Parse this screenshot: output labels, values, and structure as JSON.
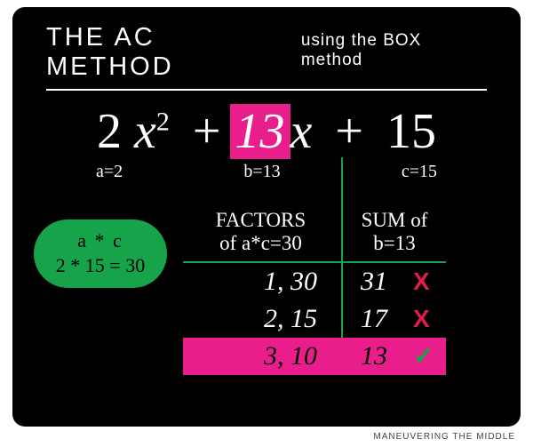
{
  "colors": {
    "frame_bg": "#000000",
    "page_bg": "#ffffff",
    "accent_green": "#16a34a",
    "accent_pink": "#e91e8c",
    "mark_red": "#e11d48",
    "text": "#ffffff"
  },
  "title": {
    "main": "THE AC METHOD",
    "sub": "using the BOX method"
  },
  "expression": {
    "a_term": "2",
    "a_var": "x",
    "a_exp": "2",
    "op1": "+",
    "b_coeff": "13",
    "b_var": "x",
    "op2": "+",
    "c_term": "15"
  },
  "coeffs": {
    "a": "a=2",
    "b": "b=13",
    "c": "c=15"
  },
  "pill": {
    "line1": "a * c",
    "line2": "2 * 15 = 30"
  },
  "table": {
    "head_factors_l1": "FACTORS",
    "head_factors_l2": "of a*c=30",
    "head_sum_l1": "SUM of",
    "head_sum_l2": "b=13",
    "rows": [
      {
        "factors": "1, 30",
        "sum": "31",
        "mark": "X",
        "ok": false
      },
      {
        "factors": "2, 15",
        "sum": "17",
        "mark": "X",
        "ok": false
      },
      {
        "factors": "3, 10",
        "sum": "13",
        "mark": "✓",
        "ok": true
      }
    ]
  },
  "credit": "MANEUVERING THE MIDDLE"
}
